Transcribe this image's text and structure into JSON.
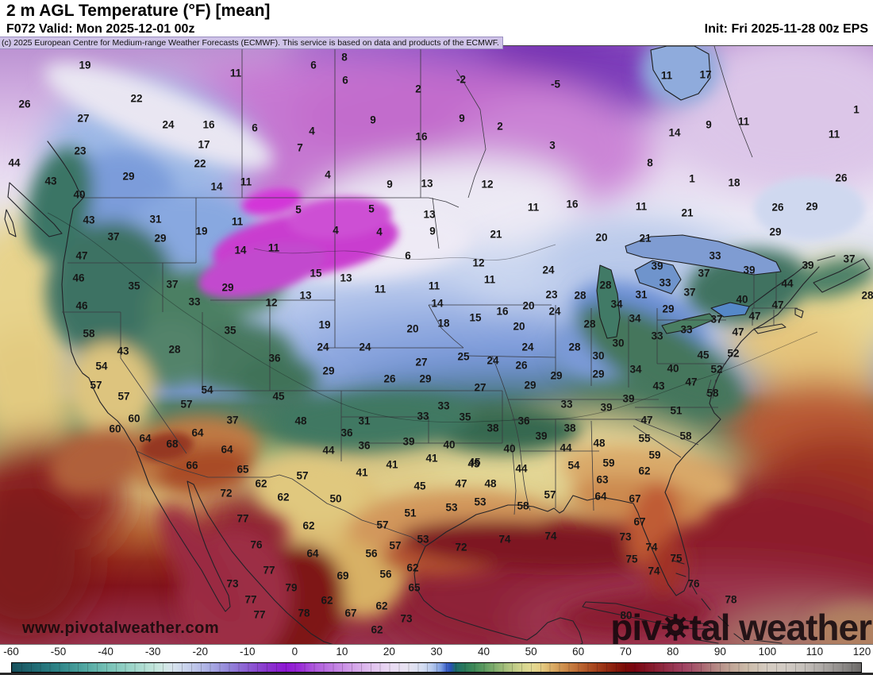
{
  "header": {
    "title": "2 m AGL Temperature (°F) [mean]",
    "forecast_line": "F072 Valid: Mon 2025-12-01 00z",
    "init_line": "Init: Fri 2025-11-28 00z EPS",
    "copyright": "(c) 2025 European Centre for Medium-range Weather Forecasts (ECMWF). This service is based on data and products of the ECMWF."
  },
  "watermark": {
    "url": "www.pivotalweather.com",
    "brand_pre": "piv",
    "brand_post": "tal weather"
  },
  "colorbar": {
    "unit": "°F",
    "range": [
      -60,
      120
    ],
    "ticks": [
      "-60",
      "-50",
      "-40",
      "-30",
      "-20",
      "-10",
      "0",
      "10",
      "20",
      "30",
      "40",
      "50",
      "60",
      "70",
      "80",
      "90",
      "100",
      "110",
      "120"
    ],
    "stops": [
      {
        "t": -60,
        "c": "#17505c"
      },
      {
        "t": -55,
        "c": "#206b74"
      },
      {
        "t": -50,
        "c": "#2f8588"
      },
      {
        "t": -45,
        "c": "#4da49f"
      },
      {
        "t": -40,
        "c": "#74c0b5"
      },
      {
        "t": -35,
        "c": "#99d3c7"
      },
      {
        "t": -30,
        "c": "#c0e4da"
      },
      {
        "t": -28,
        "c": "#cfe8e3"
      },
      {
        "t": -26,
        "c": "#d8e4ed"
      },
      {
        "t": -22,
        "c": "#c3cceb"
      },
      {
        "t": -18,
        "c": "#a9ace3"
      },
      {
        "t": -14,
        "c": "#9385d9"
      },
      {
        "t": -10,
        "c": "#8c5dd3"
      },
      {
        "t": -6,
        "c": "#8936cd"
      },
      {
        "t": -2,
        "c": "#8d17d3"
      },
      {
        "t": 1,
        "c": "#9a2bd7"
      },
      {
        "t": 4,
        "c": "#ae58dc"
      },
      {
        "t": 8,
        "c": "#c07ce2"
      },
      {
        "t": 12,
        "c": "#d2a0e8"
      },
      {
        "t": 16,
        "c": "#e0c0ee"
      },
      {
        "t": 20,
        "c": "#e9d9f2"
      },
      {
        "t": 24,
        "c": "#e7e3f1"
      },
      {
        "t": 27,
        "c": "#d5def2"
      },
      {
        "t": 29,
        "c": "#b7c9ec"
      },
      {
        "t": 31,
        "c": "#7b9ce0"
      },
      {
        "t": 32,
        "c": "#4468cc"
      },
      {
        "t": 33,
        "c": "#2850b4"
      },
      {
        "t": 34,
        "c": "#1c6a6c"
      },
      {
        "t": 36,
        "c": "#2a7a5a"
      },
      {
        "t": 38,
        "c": "#3f8a58"
      },
      {
        "t": 40,
        "c": "#5c9a60"
      },
      {
        "t": 42,
        "c": "#7cac6c"
      },
      {
        "t": 44,
        "c": "#9cba78"
      },
      {
        "t": 46,
        "c": "#b9c884"
      },
      {
        "t": 48,
        "c": "#d2d48e"
      },
      {
        "t": 50,
        "c": "#e2da94"
      },
      {
        "t": 52,
        "c": "#e5cf86"
      },
      {
        "t": 54,
        "c": "#ddb46c"
      },
      {
        "t": 56,
        "c": "#d29a56"
      },
      {
        "t": 58,
        "c": "#c88244"
      },
      {
        "t": 60,
        "c": "#bd6a34"
      },
      {
        "t": 62,
        "c": "#b05426"
      },
      {
        "t": 64,
        "c": "#a33f1b"
      },
      {
        "t": 66,
        "c": "#952c12"
      },
      {
        "t": 68,
        "c": "#871a0b"
      },
      {
        "t": 70,
        "c": "#7a0a06"
      },
      {
        "t": 72,
        "c": "#790410"
      },
      {
        "t": 74,
        "c": "#80101f"
      },
      {
        "t": 76,
        "c": "#881c2f"
      },
      {
        "t": 78,
        "c": "#8f2840"
      },
      {
        "t": 80,
        "c": "#973450"
      },
      {
        "t": 82,
        "c": "#9e3f5f"
      },
      {
        "t": 84,
        "c": "#a34f68"
      },
      {
        "t": 86,
        "c": "#a9626f"
      },
      {
        "t": 88,
        "c": "#b07a7c"
      },
      {
        "t": 90,
        "c": "#b78f88"
      },
      {
        "t": 92,
        "c": "#bfa294"
      },
      {
        "t": 96,
        "c": "#ccbcaa"
      },
      {
        "t": 100,
        "c": "#d5cbc0"
      },
      {
        "t": 104,
        "c": "#d2cbc4"
      },
      {
        "t": 108,
        "c": "#c4bfba"
      },
      {
        "t": 112,
        "c": "#aba7a4"
      },
      {
        "t": 116,
        "c": "#8e8b89"
      },
      {
        "t": 120,
        "c": "#6b6968"
      }
    ]
  },
  "chart_data": {
    "type": "heatmap",
    "title": "2 m AGL Temperature (°F) [mean]",
    "units": "°F",
    "scale_range": [
      -60,
      120
    ],
    "note": "labels are [tempF, x_px, y_px] station mean values shown on the map",
    "labels": [
      [
        19,
        107,
        82
      ],
      [
        11,
        297,
        92
      ],
      [
        8,
        434,
        72
      ],
      [
        6,
        395,
        82
      ],
      [
        6,
        435,
        101
      ],
      [
        2,
        527,
        112
      ],
      [
        -2,
        581,
        100
      ],
      [
        -5,
        700,
        106
      ],
      [
        26,
        31,
        131
      ],
      [
        22,
        172,
        124
      ],
      [
        27,
        105,
        149
      ],
      [
        24,
        212,
        157
      ],
      [
        16,
        263,
        157
      ],
      [
        6,
        321,
        161
      ],
      [
        9,
        470,
        151
      ],
      [
        9,
        582,
        149
      ],
      [
        2,
        630,
        159
      ],
      [
        4,
        393,
        165
      ],
      [
        16,
        531,
        172
      ],
      [
        7,
        378,
        186
      ],
      [
        3,
        696,
        183
      ],
      [
        17,
        257,
        182
      ],
      [
        23,
        101,
        190
      ],
      [
        22,
        252,
        206
      ],
      [
        44,
        18,
        205
      ],
      [
        43,
        64,
        228
      ],
      [
        29,
        162,
        222
      ],
      [
        14,
        273,
        235
      ],
      [
        11,
        310,
        229
      ],
      [
        40,
        100,
        245
      ],
      [
        4,
        413,
        220
      ],
      [
        9,
        491,
        232
      ],
      [
        13,
        538,
        231
      ],
      [
        12,
        614,
        232
      ],
      [
        13,
        541,
        270
      ],
      [
        9,
        545,
        291
      ],
      [
        21,
        625,
        295
      ],
      [
        11,
        672,
        261
      ],
      [
        16,
        721,
        257
      ],
      [
        5,
        376,
        264
      ],
      [
        5,
        468,
        263
      ],
      [
        4,
        423,
        290
      ],
      [
        4,
        478,
        292
      ],
      [
        31,
        196,
        276
      ],
      [
        19,
        254,
        291
      ],
      [
        43,
        112,
        277
      ],
      [
        37,
        143,
        298
      ],
      [
        29,
        202,
        300
      ],
      [
        11,
        299,
        279
      ],
      [
        14,
        303,
        315
      ],
      [
        11,
        345,
        312
      ],
      [
        11,
        840,
        95
      ],
      [
        17,
        889,
        94
      ],
      [
        9,
        893,
        157
      ],
      [
        11,
        937,
        153
      ],
      [
        14,
        850,
        167
      ],
      [
        11,
        1051,
        169
      ],
      [
        1,
        1079,
        138
      ],
      [
        8,
        819,
        205
      ],
      [
        1,
        872,
        225
      ],
      [
        18,
        925,
        230
      ],
      [
        11,
        808,
        260
      ],
      [
        21,
        866,
        268
      ],
      [
        26,
        980,
        261
      ],
      [
        26,
        1060,
        224
      ],
      [
        29,
        1023,
        260
      ],
      [
        29,
        977,
        292
      ],
      [
        21,
        813,
        300
      ],
      [
        20,
        758,
        299
      ],
      [
        47,
        103,
        322
      ],
      [
        46,
        99,
        350
      ],
      [
        35,
        169,
        360
      ],
      [
        37,
        217,
        358
      ],
      [
        29,
        287,
        362
      ],
      [
        33,
        245,
        380
      ],
      [
        12,
        342,
        381
      ],
      [
        46,
        103,
        385
      ],
      [
        58,
        112,
        420
      ],
      [
        43,
        155,
        442
      ],
      [
        28,
        220,
        440
      ],
      [
        35,
        290,
        416
      ],
      [
        36,
        346,
        451
      ],
      [
        54,
        128,
        461
      ],
      [
        57,
        121,
        485
      ],
      [
        57,
        156,
        499
      ],
      [
        54,
        261,
        491
      ],
      [
        45,
        351,
        499
      ],
      [
        60,
        169,
        527
      ],
      [
        60,
        145,
        540
      ],
      [
        64,
        183,
        552
      ],
      [
        68,
        217,
        559
      ],
      [
        64,
        249,
        545
      ],
      [
        37,
        293,
        529
      ],
      [
        64,
        286,
        566
      ],
      [
        57,
        235,
        509
      ],
      [
        6,
        514,
        322
      ],
      [
        12,
        603,
        331
      ],
      [
        15,
        398,
        344
      ],
      [
        13,
        436,
        350
      ],
      [
        11,
        479,
        364
      ],
      [
        11,
        547,
        360
      ],
      [
        11,
        617,
        352
      ],
      [
        14,
        551,
        382
      ],
      [
        15,
        599,
        400
      ],
      [
        16,
        633,
        392
      ],
      [
        20,
        666,
        385
      ],
      [
        20,
        654,
        411
      ],
      [
        18,
        559,
        407
      ],
      [
        20,
        520,
        414
      ],
      [
        19,
        409,
        409
      ],
      [
        13,
        385,
        372
      ],
      [
        24,
        691,
        340
      ],
      [
        23,
        695,
        371
      ],
      [
        24,
        699,
        392
      ],
      [
        28,
        731,
        372
      ],
      [
        24,
        407,
        437
      ],
      [
        24,
        460,
        437
      ],
      [
        24,
        665,
        437
      ],
      [
        28,
        724,
        437
      ],
      [
        25,
        584,
        449
      ],
      [
        24,
        621,
        454
      ],
      [
        27,
        531,
        456
      ],
      [
        26,
        657,
        460
      ],
      [
        29,
        414,
        467
      ],
      [
        26,
        491,
        477
      ],
      [
        29,
        536,
        477
      ],
      [
        29,
        701,
        473
      ],
      [
        29,
        668,
        485
      ],
      [
        27,
        605,
        488
      ],
      [
        33,
        559,
        511
      ],
      [
        33,
        533,
        524
      ],
      [
        35,
        586,
        525
      ],
      [
        33,
        714,
        509
      ],
      [
        31,
        459,
        530
      ],
      [
        48,
        379,
        530
      ],
      [
        36,
        437,
        545
      ],
      [
        36,
        459,
        561
      ],
      [
        38,
        621,
        539
      ],
      [
        36,
        660,
        530
      ],
      [
        38,
        718,
        539
      ],
      [
        39,
        682,
        549
      ],
      [
        39,
        515,
        556
      ],
      [
        40,
        566,
        560
      ],
      [
        40,
        642,
        565
      ],
      [
        44,
        414,
        567
      ],
      [
        44,
        713,
        564
      ],
      [
        41,
        544,
        577
      ],
      [
        45,
        598,
        582
      ],
      [
        33,
        901,
        322
      ],
      [
        37,
        1070,
        326
      ],
      [
        39,
        1018,
        334
      ],
      [
        39,
        944,
        340
      ],
      [
        39,
        828,
        335
      ],
      [
        37,
        887,
        344
      ],
      [
        33,
        838,
        356
      ],
      [
        28,
        763,
        359
      ],
      [
        31,
        808,
        371
      ],
      [
        34,
        777,
        383
      ],
      [
        37,
        869,
        368
      ],
      [
        44,
        992,
        357
      ],
      [
        40,
        935,
        377
      ],
      [
        29,
        842,
        389
      ],
      [
        34,
        800,
        401
      ],
      [
        47,
        980,
        384
      ],
      [
        47,
        951,
        398
      ],
      [
        37,
        903,
        402
      ],
      [
        28,
        743,
        408
      ],
      [
        33,
        828,
        423
      ],
      [
        33,
        865,
        415
      ],
      [
        47,
        930,
        418
      ],
      [
        30,
        779,
        432
      ],
      [
        30,
        754,
        448
      ],
      [
        45,
        886,
        447
      ],
      [
        52,
        924,
        445
      ],
      [
        29,
        754,
        471
      ],
      [
        34,
        801,
        465
      ],
      [
        40,
        848,
        464
      ],
      [
        52,
        903,
        465
      ],
      [
        43,
        830,
        486
      ],
      [
        47,
        871,
        481
      ],
      [
        58,
        898,
        495
      ],
      [
        39,
        792,
        502
      ],
      [
        39,
        764,
        513
      ],
      [
        51,
        852,
        517
      ],
      [
        47,
        815,
        529
      ],
      [
        55,
        812,
        552
      ],
      [
        58,
        864,
        549
      ],
      [
        48,
        755,
        558
      ],
      [
        59,
        825,
        573
      ],
      [
        28,
        1093,
        372
      ],
      [
        66,
        242,
        586
      ],
      [
        65,
        306,
        591
      ],
      [
        41,
        494,
        585
      ],
      [
        41,
        456,
        595
      ],
      [
        45,
        529,
        612
      ],
      [
        47,
        581,
        609
      ],
      [
        45,
        597,
        584
      ],
      [
        62,
        329,
        609
      ],
      [
        57,
        381,
        599
      ],
      [
        50,
        423,
        628
      ],
      [
        51,
        517,
        646
      ],
      [
        53,
        569,
        639
      ],
      [
        72,
        285,
        621
      ],
      [
        62,
        357,
        626
      ],
      [
        77,
        306,
        653
      ],
      [
        57,
        482,
        661
      ],
      [
        62,
        389,
        662
      ],
      [
        76,
        323,
        686
      ],
      [
        57,
        498,
        687
      ],
      [
        53,
        533,
        679
      ],
      [
        72,
        581,
        689
      ],
      [
        64,
        394,
        697
      ],
      [
        56,
        468,
        697
      ],
      [
        62,
        520,
        715
      ],
      [
        77,
        339,
        718
      ],
      [
        56,
        486,
        723
      ],
      [
        69,
        432,
        725
      ],
      [
        65,
        522,
        740
      ],
      [
        73,
        293,
        735
      ],
      [
        79,
        367,
        740
      ],
      [
        77,
        316,
        755
      ],
      [
        62,
        412,
        756
      ],
      [
        62,
        481,
        763
      ],
      [
        77,
        327,
        774
      ],
      [
        78,
        383,
        772
      ],
      [
        67,
        442,
        772
      ],
      [
        73,
        512,
        779
      ],
      [
        62,
        475,
        793
      ],
      [
        44,
        657,
        590
      ],
      [
        54,
        723,
        586
      ],
      [
        59,
        767,
        583
      ],
      [
        62,
        812,
        593
      ],
      [
        48,
        618,
        609
      ],
      [
        63,
        759,
        604
      ],
      [
        53,
        605,
        632
      ],
      [
        57,
        693,
        623
      ],
      [
        58,
        659,
        637
      ],
      [
        64,
        757,
        625
      ],
      [
        67,
        800,
        628
      ],
      [
        67,
        806,
        657
      ],
      [
        74,
        694,
        675
      ],
      [
        74,
        636,
        679
      ],
      [
        73,
        788,
        676
      ],
      [
        74,
        821,
        689
      ],
      [
        75,
        796,
        704
      ],
      [
        75,
        852,
        703
      ],
      [
        74,
        824,
        719
      ],
      [
        80,
        789,
        775
      ],
      [
        76,
        874,
        735
      ],
      [
        78,
        921,
        755
      ]
    ]
  },
  "palette": {
    "copyright_bg": "#cfc3e8",
    "label_color": "#161616",
    "cold_purple": "#8d17d3",
    "warm_maroon": "#973450",
    "freeze_blue": "#4468cc",
    "freeze_green": "#2a7a5a"
  }
}
